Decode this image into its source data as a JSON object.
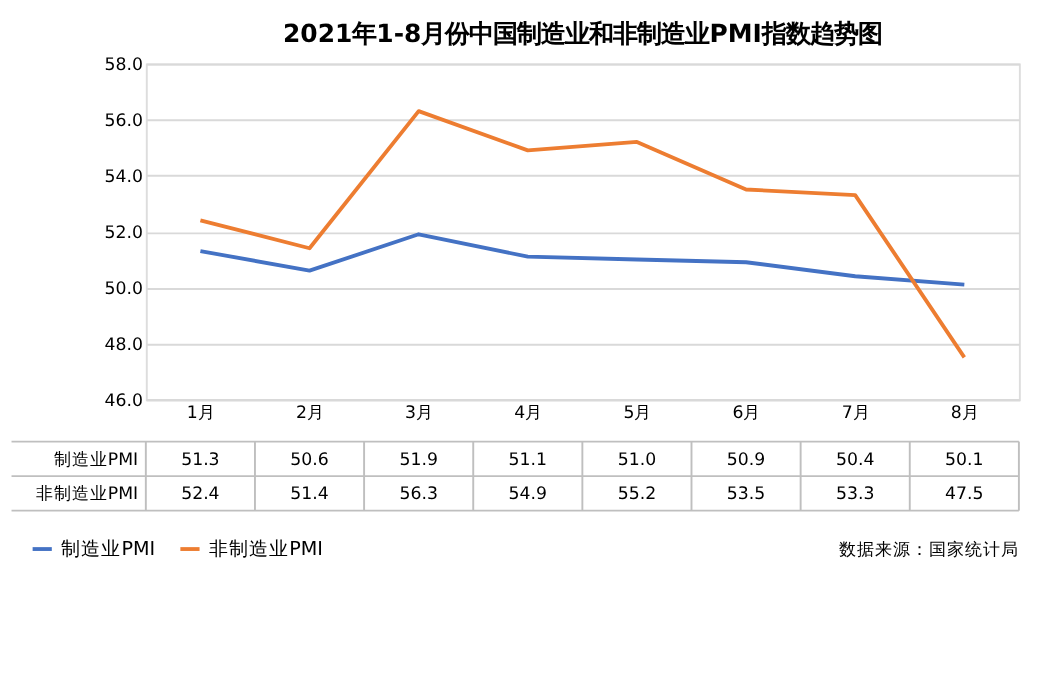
{
  "chart_data": {
    "type": "line",
    "title": "2021年1-8月份中国制造业和非制造业PMI指数趋势图",
    "categories": [
      "1月",
      "2月",
      "3月",
      "4月",
      "5月",
      "6月",
      "7月",
      "8月"
    ],
    "series": [
      {
        "name": "制造业PMI",
        "color": "#4472c4",
        "values": [
          51.3,
          50.6,
          51.9,
          51.1,
          51.0,
          50.9,
          50.4,
          50.1
        ],
        "value_labels": [
          "51.3",
          "50.6",
          "51.9",
          "51.1",
          "51.0",
          "50.9",
          "50.4",
          "50.1"
        ]
      },
      {
        "name": "非制造业PMI",
        "color": "#ed7d31",
        "values": [
          52.4,
          51.4,
          56.3,
          54.9,
          55.2,
          53.5,
          53.3,
          47.5
        ],
        "value_labels": [
          "52.4",
          "51.4",
          "56.3",
          "54.9",
          "55.2",
          "53.5",
          "53.3",
          "47.5"
        ]
      }
    ],
    "ylim": [
      46,
      58
    ],
    "yticks": [
      {
        "value": 46,
        "label": "46.0"
      },
      {
        "value": 48,
        "label": "48.0"
      },
      {
        "value": 50,
        "label": "50.0"
      },
      {
        "value": 52,
        "label": "52.0"
      },
      {
        "value": 54,
        "label": "54.0"
      },
      {
        "value": 56,
        "label": "56.0"
      },
      {
        "value": 58,
        "label": "58.0"
      }
    ],
    "grid": "y",
    "legend": "bottom left",
    "marker": "none",
    "line_style": "solid",
    "annotations": [
      "数据来源：国家统计局"
    ]
  }
}
